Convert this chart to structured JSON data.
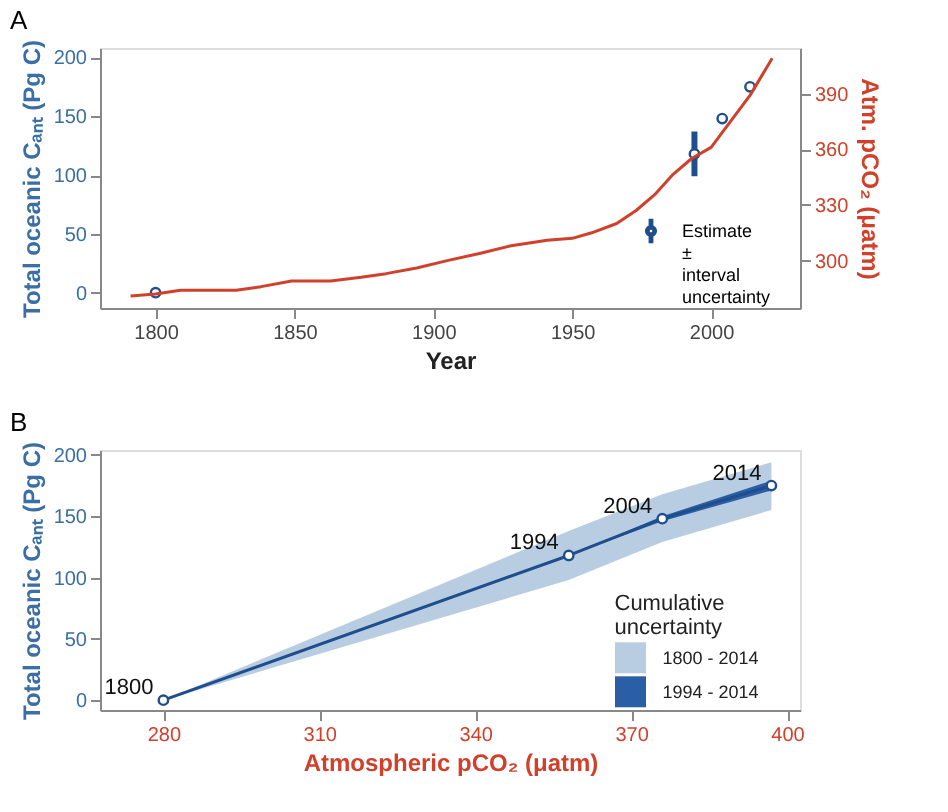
{
  "chart_data": [
    {
      "type": "line",
      "title": "A",
      "xlabel": "Year",
      "ylabel": "Total oceanic Cₐₙₜ (Pg C)",
      "y2label": "Atm. pCO₂ (μatm)",
      "xlim": [
        1780,
        2032
      ],
      "xticks": [
        1800,
        1850,
        1900,
        1950,
        2000
      ],
      "ylim": [
        -13,
        208
      ],
      "yticks": [
        0,
        50,
        100,
        150,
        200
      ],
      "y2lim": [
        274.5,
        414.5
      ],
      "y2ticks": [
        300,
        330,
        360,
        390
      ],
      "grid": false,
      "legend": "bottom right",
      "series": [
        {
          "type": "line",
          "axis": "y2",
          "color": "#d0402b",
          "x": [
            1791,
            1800,
            1809,
            1818,
            1829,
            1838,
            1849,
            1863,
            1874,
            1883,
            1894,
            1905,
            1917,
            1928,
            1941,
            1950,
            1957,
            1966,
            1973,
            1980,
            1986,
            1993,
            2000,
            2007,
            2014,
            2022
          ],
          "values": [
            281,
            282,
            284,
            284,
            284,
            286,
            289,
            289,
            291,
            293,
            296,
            300,
            304,
            308,
            311,
            312,
            315,
            320,
            327,
            336,
            346,
            355,
            361,
            375,
            389,
            409
          ]
        },
        {
          "type": "scatter",
          "name": "Estimate ± interval uncertainty",
          "marker": "circle",
          "color": "#1f4e8c",
          "x": [
            1800,
            1994,
            2004,
            2014
          ],
          "values": [
            0,
            118,
            148,
            175
          ],
          "errors": [
            null,
            19,
            null,
            null
          ]
        }
      ]
    },
    {
      "type": "line",
      "title": "B",
      "xlabel": "Atmospheric pCO₂ (μatm)",
      "ylabel": "Total oceanic Cₐₙₜ (Pg C)",
      "xlim": [
        267.8,
        402.5
      ],
      "xticks": [
        280,
        310,
        340,
        370,
        400
      ],
      "ylim": [
        -8,
        204
      ],
      "yticks": [
        0,
        50,
        100,
        150,
        200
      ],
      "grid": false,
      "legend": "bottom right",
      "legend_title": "Cumulative uncertainty",
      "annotations": [
        {
          "text": "1800",
          "x": 280,
          "y": 0
        },
        {
          "text": "1994",
          "x": 358,
          "y": 118
        },
        {
          "text": "2004",
          "x": 376,
          "y": 148
        },
        {
          "text": "2014",
          "x": 397,
          "y": 175
        }
      ],
      "series": [
        {
          "type": "area",
          "name": "1800 - 2014",
          "color": "#b9cde2",
          "x": [
            280,
            358,
            376,
            397
          ],
          "values": [
            null,
            null,
            null,
            null
          ],
          "lower": [
            0,
            98,
            129,
            155
          ],
          "upper": [
            0,
            138,
            168,
            194
          ]
        },
        {
          "type": "area",
          "name": "1994 - 2014",
          "color": "#2a5fa5",
          "x": [
            358,
            376,
            397
          ],
          "values": [
            null,
            null,
            null
          ],
          "lower": [
            118,
            146,
            171
          ],
          "upper": [
            118,
            150,
            179
          ]
        },
        {
          "type": "line",
          "color": "#1f4e8c",
          "marker": "circle",
          "x": [
            280,
            358,
            376,
            397
          ],
          "values": [
            0,
            118,
            148,
            175
          ]
        }
      ]
    }
  ]
}
